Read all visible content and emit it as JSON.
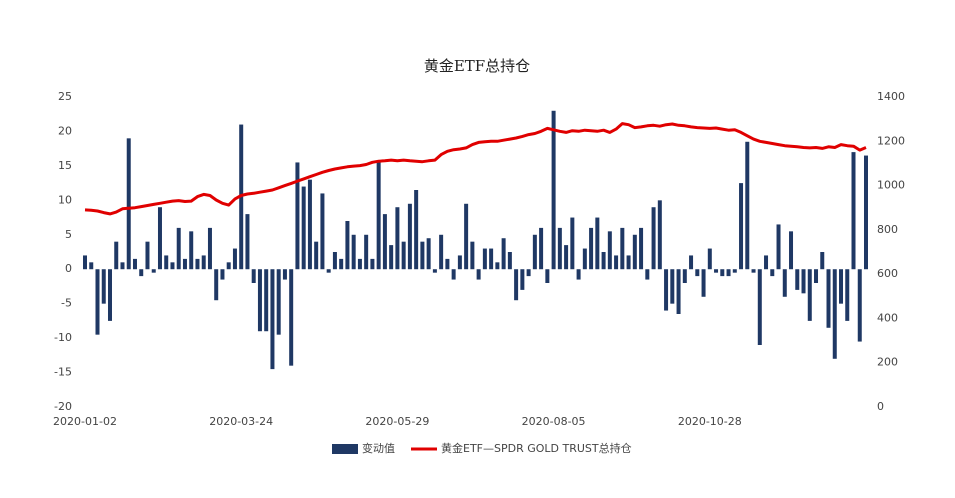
{
  "chart_data": {
    "type": "bar-line",
    "title": "黄金ETF总持仓",
    "categories": [
      "2020-01-02",
      null,
      null,
      null,
      null,
      null,
      null,
      null,
      null,
      null,
      null,
      null,
      null,
      null,
      null,
      null,
      null,
      null,
      null,
      null,
      null,
      null,
      null,
      null,
      null,
      "2020-03-24",
      null,
      null,
      null,
      null,
      null,
      null,
      null,
      null,
      null,
      null,
      null,
      null,
      null,
      null,
      null,
      null,
      null,
      null,
      null,
      null,
      null,
      null,
      null,
      null,
      "2020-05-29",
      null,
      null,
      null,
      null,
      null,
      null,
      null,
      null,
      null,
      null,
      null,
      null,
      null,
      null,
      null,
      null,
      null,
      null,
      null,
      null,
      null,
      null,
      null,
      null,
      "2020-08-05",
      null,
      null,
      null,
      null,
      null,
      null,
      null,
      null,
      null,
      null,
      null,
      null,
      null,
      null,
      null,
      null,
      null,
      null,
      null,
      null,
      null,
      null,
      null,
      null,
      "2020-10-28",
      null,
      null,
      null,
      null,
      null,
      null,
      null,
      null,
      null,
      null,
      null,
      null,
      null,
      null,
      null,
      null,
      null,
      null,
      null,
      null,
      null,
      null,
      null,
      null,
      null
    ],
    "series": [
      {
        "name": "变动值",
        "color": "#1f3864",
        "axis": "y",
        "values": [
          2,
          1,
          -9.5,
          -5,
          -7.5,
          4,
          1,
          19,
          1.5,
          -1,
          4,
          -0.5,
          9,
          2,
          1,
          6,
          1.5,
          5.5,
          1.5,
          2,
          6,
          -4.5,
          -1.5,
          1,
          3,
          21,
          8,
          -2,
          -9,
          -9,
          -14.5,
          -9.5,
          -1.5,
          -14,
          15.5,
          12,
          13,
          4,
          11,
          -0.5,
          2.5,
          1.5,
          7,
          5,
          1.5,
          5,
          1.5,
          15.5,
          8,
          3.5,
          9,
          4,
          9.5,
          11.5,
          4,
          4.5,
          -0.5,
          5,
          1.5,
          -1.5,
          2,
          9.5,
          4,
          -1.5,
          3,
          3,
          1,
          4.5,
          2.5,
          -4.5,
          -3,
          -1,
          5,
          6,
          -2,
          23,
          6,
          3.5,
          7.5,
          -1.5,
          3,
          6,
          7.5,
          2.5,
          5.5,
          2,
          6,
          2,
          5,
          6,
          -1.5,
          9,
          10,
          -6,
          -5,
          -6.5,
          -2,
          2,
          -1,
          -4,
          3,
          -0.5,
          -1,
          -1,
          -0.5,
          12.5,
          18.5,
          -0.5,
          -11,
          2,
          -1,
          6.5,
          -4,
          5.5,
          -3,
          -3.5,
          -7.5,
          -2,
          2.5,
          -8.5,
          -13,
          -5,
          -7.5,
          17,
          -10.5,
          16.5
        ]
      },
      {
        "name": "黄金ETF—SPDR GOLD TRUST总持仓",
        "color": "#e00000",
        "axis": "y2",
        "values": [
          890,
          889,
          885,
          878,
          872,
          880,
          895,
          898,
          900,
          905,
          910,
          915,
          920,
          925,
          930,
          932,
          928,
          930,
          950,
          960,
          955,
          935,
          920,
          912,
          940,
          955,
          962,
          965,
          970,
          975,
          980,
          990,
          1000,
          1010,
          1020,
          1030,
          1040,
          1050,
          1060,
          1068,
          1075,
          1080,
          1085,
          1088,
          1090,
          1095,
          1105,
          1110,
          1112,
          1115,
          1112,
          1115,
          1112,
          1110,
          1108,
          1112,
          1115,
          1140,
          1155,
          1162,
          1165,
          1170,
          1185,
          1195,
          1198,
          1200,
          1200,
          1205,
          1210,
          1215,
          1222,
          1230,
          1235,
          1245,
          1258,
          1252,
          1245,
          1240,
          1248,
          1245,
          1250,
          1248,
          1245,
          1250,
          1240,
          1255,
          1280,
          1275,
          1262,
          1265,
          1270,
          1272,
          1268,
          1275,
          1278,
          1272,
          1270,
          1265,
          1262,
          1260,
          1258,
          1260,
          1255,
          1250,
          1252,
          1240,
          1225,
          1210,
          1200,
          1195,
          1190,
          1185,
          1180,
          1178,
          1175,
          1172,
          1170,
          1172,
          1168,
          1175,
          1172,
          1185,
          1180,
          1178,
          1160,
          1172
        ]
      }
    ],
    "ylim": [
      -20,
      25
    ],
    "yticks": [
      -20,
      -15,
      -10,
      -5,
      0,
      5,
      10,
      15,
      20,
      25
    ],
    "y2lim": [
      0,
      1400
    ],
    "y2ticks": [
      0,
      200,
      400,
      600,
      800,
      1000,
      1200,
      1400
    ],
    "grid": false,
    "legend": "bottom"
  }
}
